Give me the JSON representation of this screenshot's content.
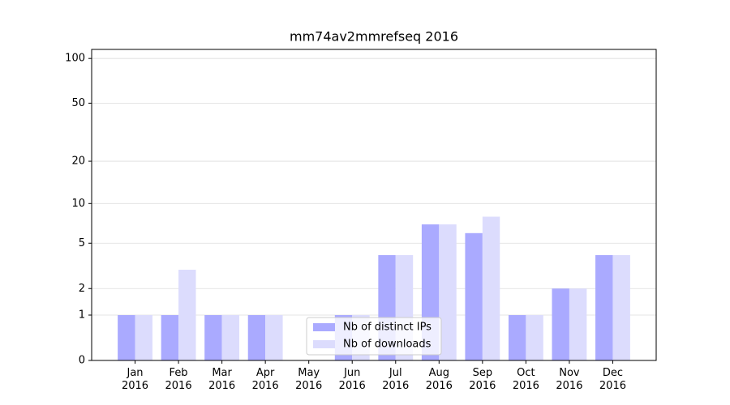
{
  "chart_data": {
    "type": "bar",
    "title": "mm74av2mmrefseq 2016",
    "categories": [
      "Jan\n2016",
      "Feb\n2016",
      "Mar\n2016",
      "Apr\n2016",
      "May\n2016",
      "Jun\n2016",
      "Jul\n2016",
      "Aug\n2016",
      "Sep\n2016",
      "Oct\n2016",
      "Nov\n2016",
      "Dec\n2016"
    ],
    "series": [
      {
        "name": "Nb of distinct IPs",
        "color": "#aaaaff",
        "values": [
          1,
          1,
          1,
          1,
          0,
          1,
          4,
          7,
          6,
          1,
          2,
          4
        ]
      },
      {
        "name": "Nb of downloads",
        "color": "#dcdcfd",
        "values": [
          1,
          3,
          1,
          1,
          0,
          1,
          4,
          7,
          8,
          1,
          2,
          4
        ]
      }
    ],
    "yscale": "log1p",
    "ylim": [
      0,
      115
    ],
    "yticks": [
      0,
      1,
      2,
      5,
      10,
      20,
      50,
      100
    ],
    "grid": true,
    "legend": "lower center"
  }
}
